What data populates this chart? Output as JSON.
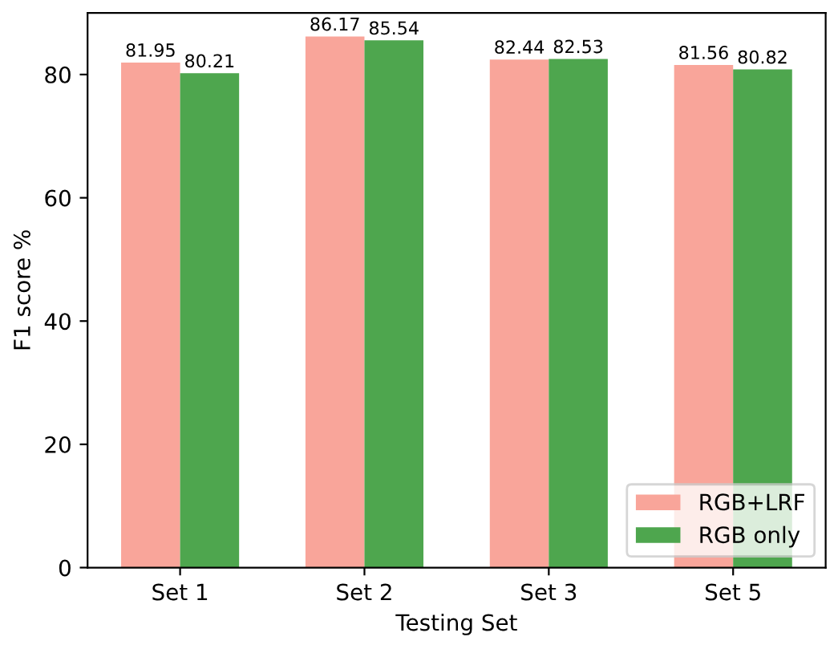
{
  "chart_data": {
    "type": "bar",
    "xlabel": "Testing Set",
    "ylabel": "F1 score %",
    "categories": [
      "Set 1",
      "Set 2",
      "Set 3",
      "Set 5"
    ],
    "series": [
      {
        "name": "RGB+LRF",
        "color": "#f9a59a",
        "values": [
          81.95,
          86.17,
          82.44,
          81.56
        ]
      },
      {
        "name": "RGB only",
        "color": "#4ea64e",
        "values": [
          80.21,
          85.54,
          82.53,
          80.82
        ]
      }
    ],
    "ylim": [
      0,
      90
    ],
    "yticks": [
      0,
      20,
      40,
      60,
      80
    ],
    "data_labels": true,
    "legend": "bottom right",
    "grid": false
  }
}
